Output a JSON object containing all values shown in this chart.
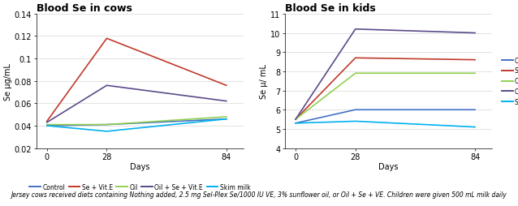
{
  "days": [
    0,
    28,
    84
  ],
  "cows": {
    "title": "Blood Se in cows",
    "ylabel": "Se μg/mL",
    "xlabel": "Days",
    "ylim": [
      0.02,
      0.14
    ],
    "yticks": [
      0.02,
      0.04,
      0.06,
      0.08,
      0.1,
      0.12,
      0.14
    ],
    "series": {
      "Control": {
        "values": [
          0.04,
          0.041,
          0.046
        ],
        "color": "#4472C4"
      },
      "Se + Vit.E": {
        "values": [
          0.044,
          0.118,
          0.076
        ],
        "color": "#C0392B"
      },
      "Oil": {
        "values": [
          0.041,
          0.041,
          0.048
        ],
        "color": "#92D050"
      },
      "Oil + Se + Vit.E": {
        "values": [
          0.043,
          0.076,
          0.062
        ],
        "color": "#5B4A8A"
      },
      "Skim milk": {
        "values": [
          0.04,
          0.035,
          0.046
        ],
        "color": "#00B0F0"
      }
    }
  },
  "kids": {
    "title": "Blood Se in kids",
    "ylabel": "Se μ/ mL",
    "xlabel": "Days",
    "ylim": [
      4,
      11
    ],
    "yticks": [
      4,
      5,
      6,
      7,
      8,
      9,
      10,
      11
    ],
    "series": {
      "Control": {
        "values": [
          5.3,
          6.0,
          6.0
        ],
        "color": "#4472C4"
      },
      "Se + Vit.E": {
        "values": [
          5.5,
          8.7,
          8.6
        ],
        "color": "#C0392B"
      },
      "Oil": {
        "values": [
          5.5,
          7.9,
          7.9
        ],
        "color": "#92D050"
      },
      "Oil + Se + Vit.E": {
        "values": [
          5.5,
          10.2,
          10.0
        ],
        "color": "#5B4A8A"
      },
      "Skim milk": {
        "values": [
          5.3,
          5.4,
          5.1
        ],
        "color": "#00B0F0"
      }
    }
  },
  "legend_labels": [
    "Control",
    "Se + Vit.E",
    "Oil",
    "Oil + Se + Vit.E",
    "Skim milk"
  ],
  "legend_colors": [
    "#4472C4",
    "#C0392B",
    "#92D050",
    "#5B4A8A",
    "#00B0F0"
  ],
  "caption": "Jersey cows received diets containing Nothing added, 2.5 mg Sel-Plex Se/1000 IU VE, 3% sunflower oil, or Oil + Se + VE. Children were given 500 mL milk daily",
  "bg_color": "#FFFFFF",
  "plot_bg_color": "#FFFFFF"
}
